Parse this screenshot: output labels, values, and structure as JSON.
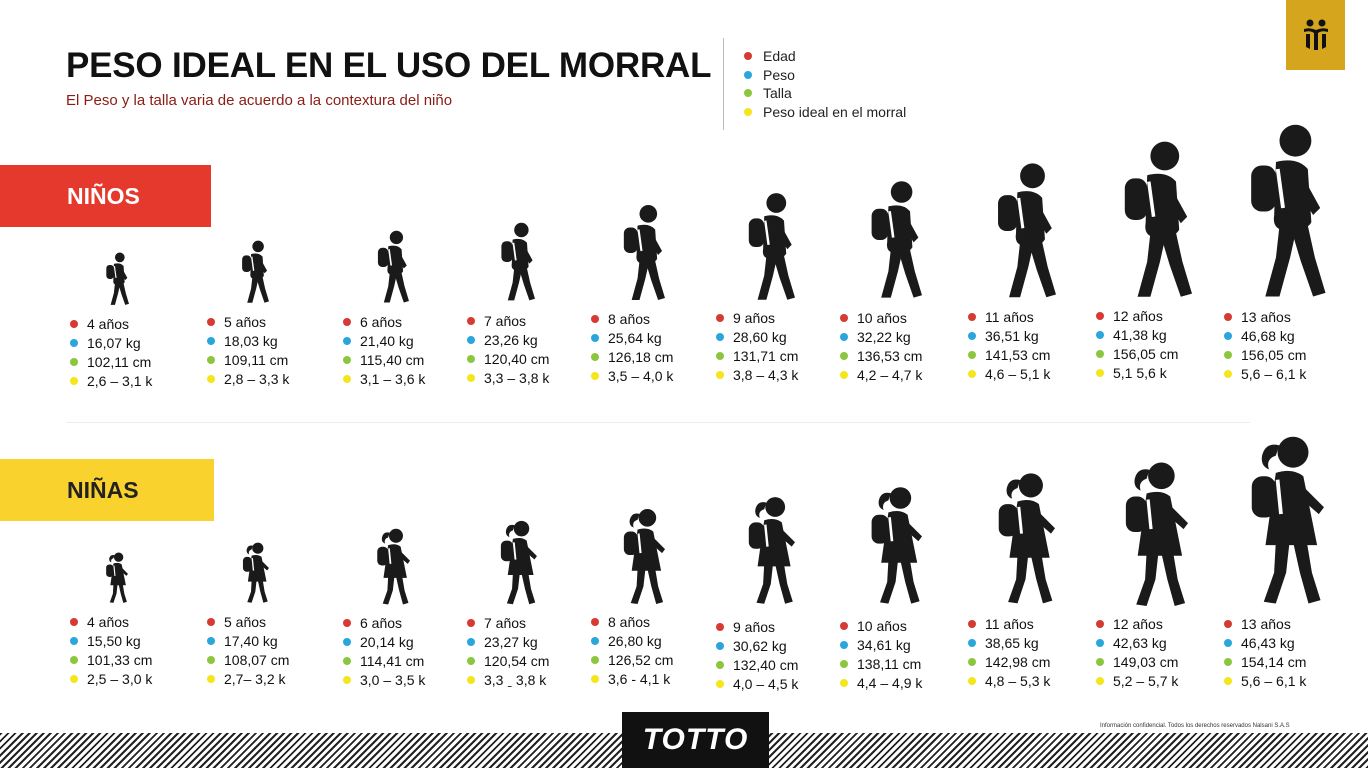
{
  "header": {
    "title": "PESO IDEAL EN EL USO DEL MORRAL",
    "subtitle": "El Peso y la talla varia de acuerdo a la contextura del  niño"
  },
  "legend": [
    {
      "label": "Edad",
      "color": "#d63a32"
    },
    {
      "label": "Peso",
      "color": "#2aa6dc"
    },
    {
      "label": "Talla",
      "color": "#8cc63e"
    },
    {
      "label": "Peso ideal en el  morral",
      "color": "#f5e51d"
    }
  ],
  "sections": {
    "ninos": {
      "label": "NIÑOS",
      "color": "#e6392d",
      "items": [
        {
          "edad": "4 años",
          "peso": "16,07 kg",
          "talla": "102,11 cm",
          "morral": "2,6 – 3,1 k"
        },
        {
          "edad": "5 años",
          "peso": "18,03 kg",
          "talla": "109,11 cm",
          "morral": "2,8 – 3,3 k"
        },
        {
          "edad": "6 años",
          "peso": "21,40 kg",
          "talla": "115,40 cm",
          "morral": "3,1 – 3,6 k"
        },
        {
          "edad": "7 años",
          "peso": "23,26 kg",
          "talla": "120,40 cm",
          "morral": "3,3 – 3,8 k"
        },
        {
          "edad": "8 años",
          "peso": "25,64 kg",
          "talla": "126,18 cm",
          "morral": "3,5 – 4,0 k"
        },
        {
          "edad": "9 años",
          "peso": "28,60 kg",
          "talla": "131,71 cm",
          "morral": "3,8 – 4,3 k"
        },
        {
          "edad": "10 años",
          "peso": "32,22 kg",
          "talla": "136,53 cm",
          "morral": "4,2 – 4,7 k"
        },
        {
          "edad": "11 años",
          "peso": "36,51 kg",
          "talla": "141,53 cm",
          "morral": "4,6 – 5,1 k"
        },
        {
          "edad": "12 años",
          "peso": "41,38 kg",
          "talla": "156,05 cm",
          "morral": "5,1    5,6 k"
        },
        {
          "edad": "13 años",
          "peso": "46,68 kg",
          "talla": "156,05 cm",
          "morral": "5,6 – 6,1 k"
        }
      ]
    },
    "ninas": {
      "label": "NIÑAS",
      "color": "#f9d22d",
      "items": [
        {
          "edad": "4 años",
          "peso": "15,50 kg",
          "talla": "101,33 cm",
          "morral": "2,5 – 3,0 k"
        },
        {
          "edad": "5 años",
          "peso": "17,40 kg",
          "talla": "108,07 cm",
          "morral": "2,7– 3,2 k"
        },
        {
          "edad": "6 años",
          "peso": "20,14 kg",
          "talla": "114,41 cm",
          "morral": "3,0 – 3,5 k"
        },
        {
          "edad": "7 años",
          "peso": "23,27 kg",
          "talla": "120,54 cm",
          "morral": "3,3 ˍ 3,8 k"
        },
        {
          "edad": "8 años",
          "peso": "26,80 kg",
          "talla": "126,52 cm",
          "morral": "3,6 - 4,1 k"
        },
        {
          "edad": "9 años",
          "peso": "30,62 kg",
          "talla": "132,40 cm",
          "morral": "4,0 – 4,5 k"
        },
        {
          "edad": "10 años",
          "peso": "34,61 kg",
          "talla": "138,11 cm",
          "morral": "4,4 – 4,9 k"
        },
        {
          "edad": "11 años",
          "peso": "38,65 kg",
          "talla": "142,98 cm",
          "morral": "4,8 – 5,3 k"
        },
        {
          "edad": "12 años",
          "peso": "42,63 kg",
          "talla": "149,03 cm",
          "morral": "5,2 – 5,7 k"
        },
        {
          "edad": "13 años",
          "peso": "46,43 kg",
          "talla": "154,14 cm",
          "morral": "5,6 – 6,1 k"
        }
      ]
    }
  },
  "footer": {
    "brand": "TOTTO",
    "confidential": "Información confidencial. Todos los derechos reservados Nalsani S.A.S"
  },
  "icons": {
    "logo": "totto-figures-logo-icon",
    "boy": "boy-with-backpack-icon",
    "girl": "girl-with-backpack-icon"
  }
}
